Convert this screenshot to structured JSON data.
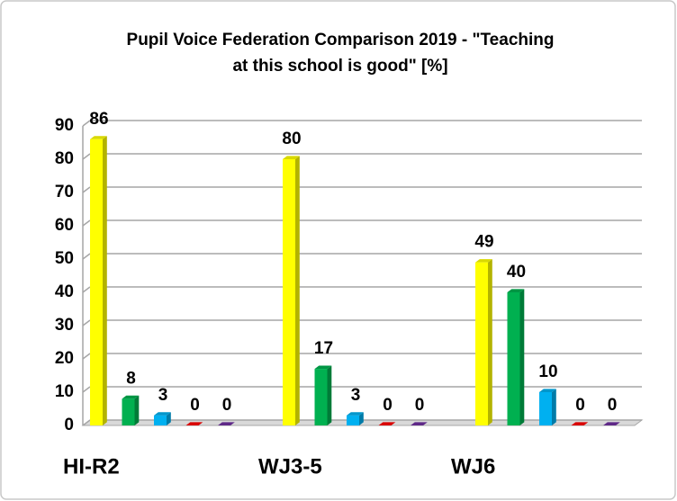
{
  "chart_data": {
    "type": "bar",
    "title": [
      "Pupil Voice Federation Comparison 2019 - \"Teaching",
      "at this school is good\"  [%]"
    ],
    "categories": [
      "HI-R2",
      "WJ3-5",
      "WJ6"
    ],
    "series": [
      {
        "color": "#ffff00",
        "values": [
          86,
          80,
          49
        ]
      },
      {
        "color": "#00b050",
        "values": [
          8,
          17,
          40
        ]
      },
      {
        "color": "#00b0f0",
        "values": [
          3,
          3,
          10
        ]
      },
      {
        "color": "#ff0000",
        "values": [
          0,
          0,
          0
        ]
      },
      {
        "color": "#7030a0",
        "values": [
          0,
          0,
          0
        ]
      }
    ],
    "ylim": [
      0,
      90
    ],
    "yticks": [
      0,
      10,
      20,
      30,
      40,
      50,
      60,
      70,
      80,
      90
    ],
    "grid": true
  }
}
